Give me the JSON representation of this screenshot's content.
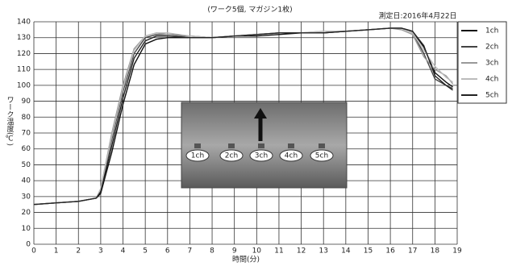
{
  "chart_data": {
    "type": "line",
    "title": "(ワーク5個, マガジン1枚)",
    "annotation": "測定日:2016年4月22日",
    "xlabel": "時間(分)",
    "ylabel": "ワーク温度(℃)",
    "inset_labels": [
      "1ch",
      "2ch",
      "3ch",
      "4ch",
      "5ch"
    ],
    "x": [
      0,
      1,
      2,
      2.8,
      3,
      3.5,
      4,
      4.5,
      5,
      5.5,
      6,
      7,
      8,
      9,
      10,
      11,
      12,
      13,
      14,
      15,
      16,
      16.5,
      17,
      17.5,
      18,
      18.5,
      18.8
    ],
    "series": [
      {
        "name": "1ch",
        "color": "#111111",
        "values": [
          25,
          26,
          27,
          29,
          32,
          58,
          88,
          113,
          126,
          129,
          130,
          130,
          130,
          131,
          131,
          132,
          133,
          133,
          134,
          135,
          136,
          136,
          134,
          124,
          108,
          102,
          99
        ]
      },
      {
        "name": "2ch",
        "color": "#444444",
        "values": [
          25,
          26,
          27,
          29,
          34,
          66,
          96,
          120,
          130,
          132,
          132,
          131,
          130,
          131,
          132,
          133,
          133,
          133,
          134,
          135,
          136,
          136,
          133,
          120,
          104,
          100,
          98
        ]
      },
      {
        "name": "3ch",
        "color": "#999999",
        "values": [
          25,
          26,
          27,
          29,
          35,
          70,
          100,
          123,
          131,
          133,
          132,
          130,
          130,
          131,
          132,
          133,
          133,
          134,
          134,
          135,
          136,
          135,
          132,
          118,
          110,
          106,
          101
        ]
      },
      {
        "name": "4ch",
        "color": "#bbbbbb",
        "values": [
          25,
          26,
          27,
          29,
          35,
          68,
          98,
          122,
          131,
          133,
          133,
          131,
          130,
          131,
          132,
          133,
          133,
          134,
          134,
          135,
          136,
          136,
          133,
          122,
          112,
          105,
          102
        ]
      },
      {
        "name": "5ch",
        "color": "#222222",
        "values": [
          25,
          26,
          27,
          29,
          33,
          62,
          92,
          117,
          128,
          131,
          131,
          130,
          130,
          131,
          132,
          133,
          133,
          133,
          134,
          135,
          136,
          136,
          134,
          125,
          106,
          100,
          97
        ]
      }
    ],
    "xlim": [
      0,
      19
    ],
    "xticks": [
      0,
      1,
      2,
      3,
      4,
      5,
      6,
      7,
      8,
      9,
      10,
      11,
      12,
      13,
      14,
      15,
      16,
      17,
      18,
      19
    ],
    "ylim": [
      0,
      140
    ],
    "yticks": [
      0,
      10,
      20,
      30,
      40,
      50,
      60,
      70,
      80,
      90,
      100,
      110,
      120,
      130,
      140
    ],
    "grid": true
  }
}
